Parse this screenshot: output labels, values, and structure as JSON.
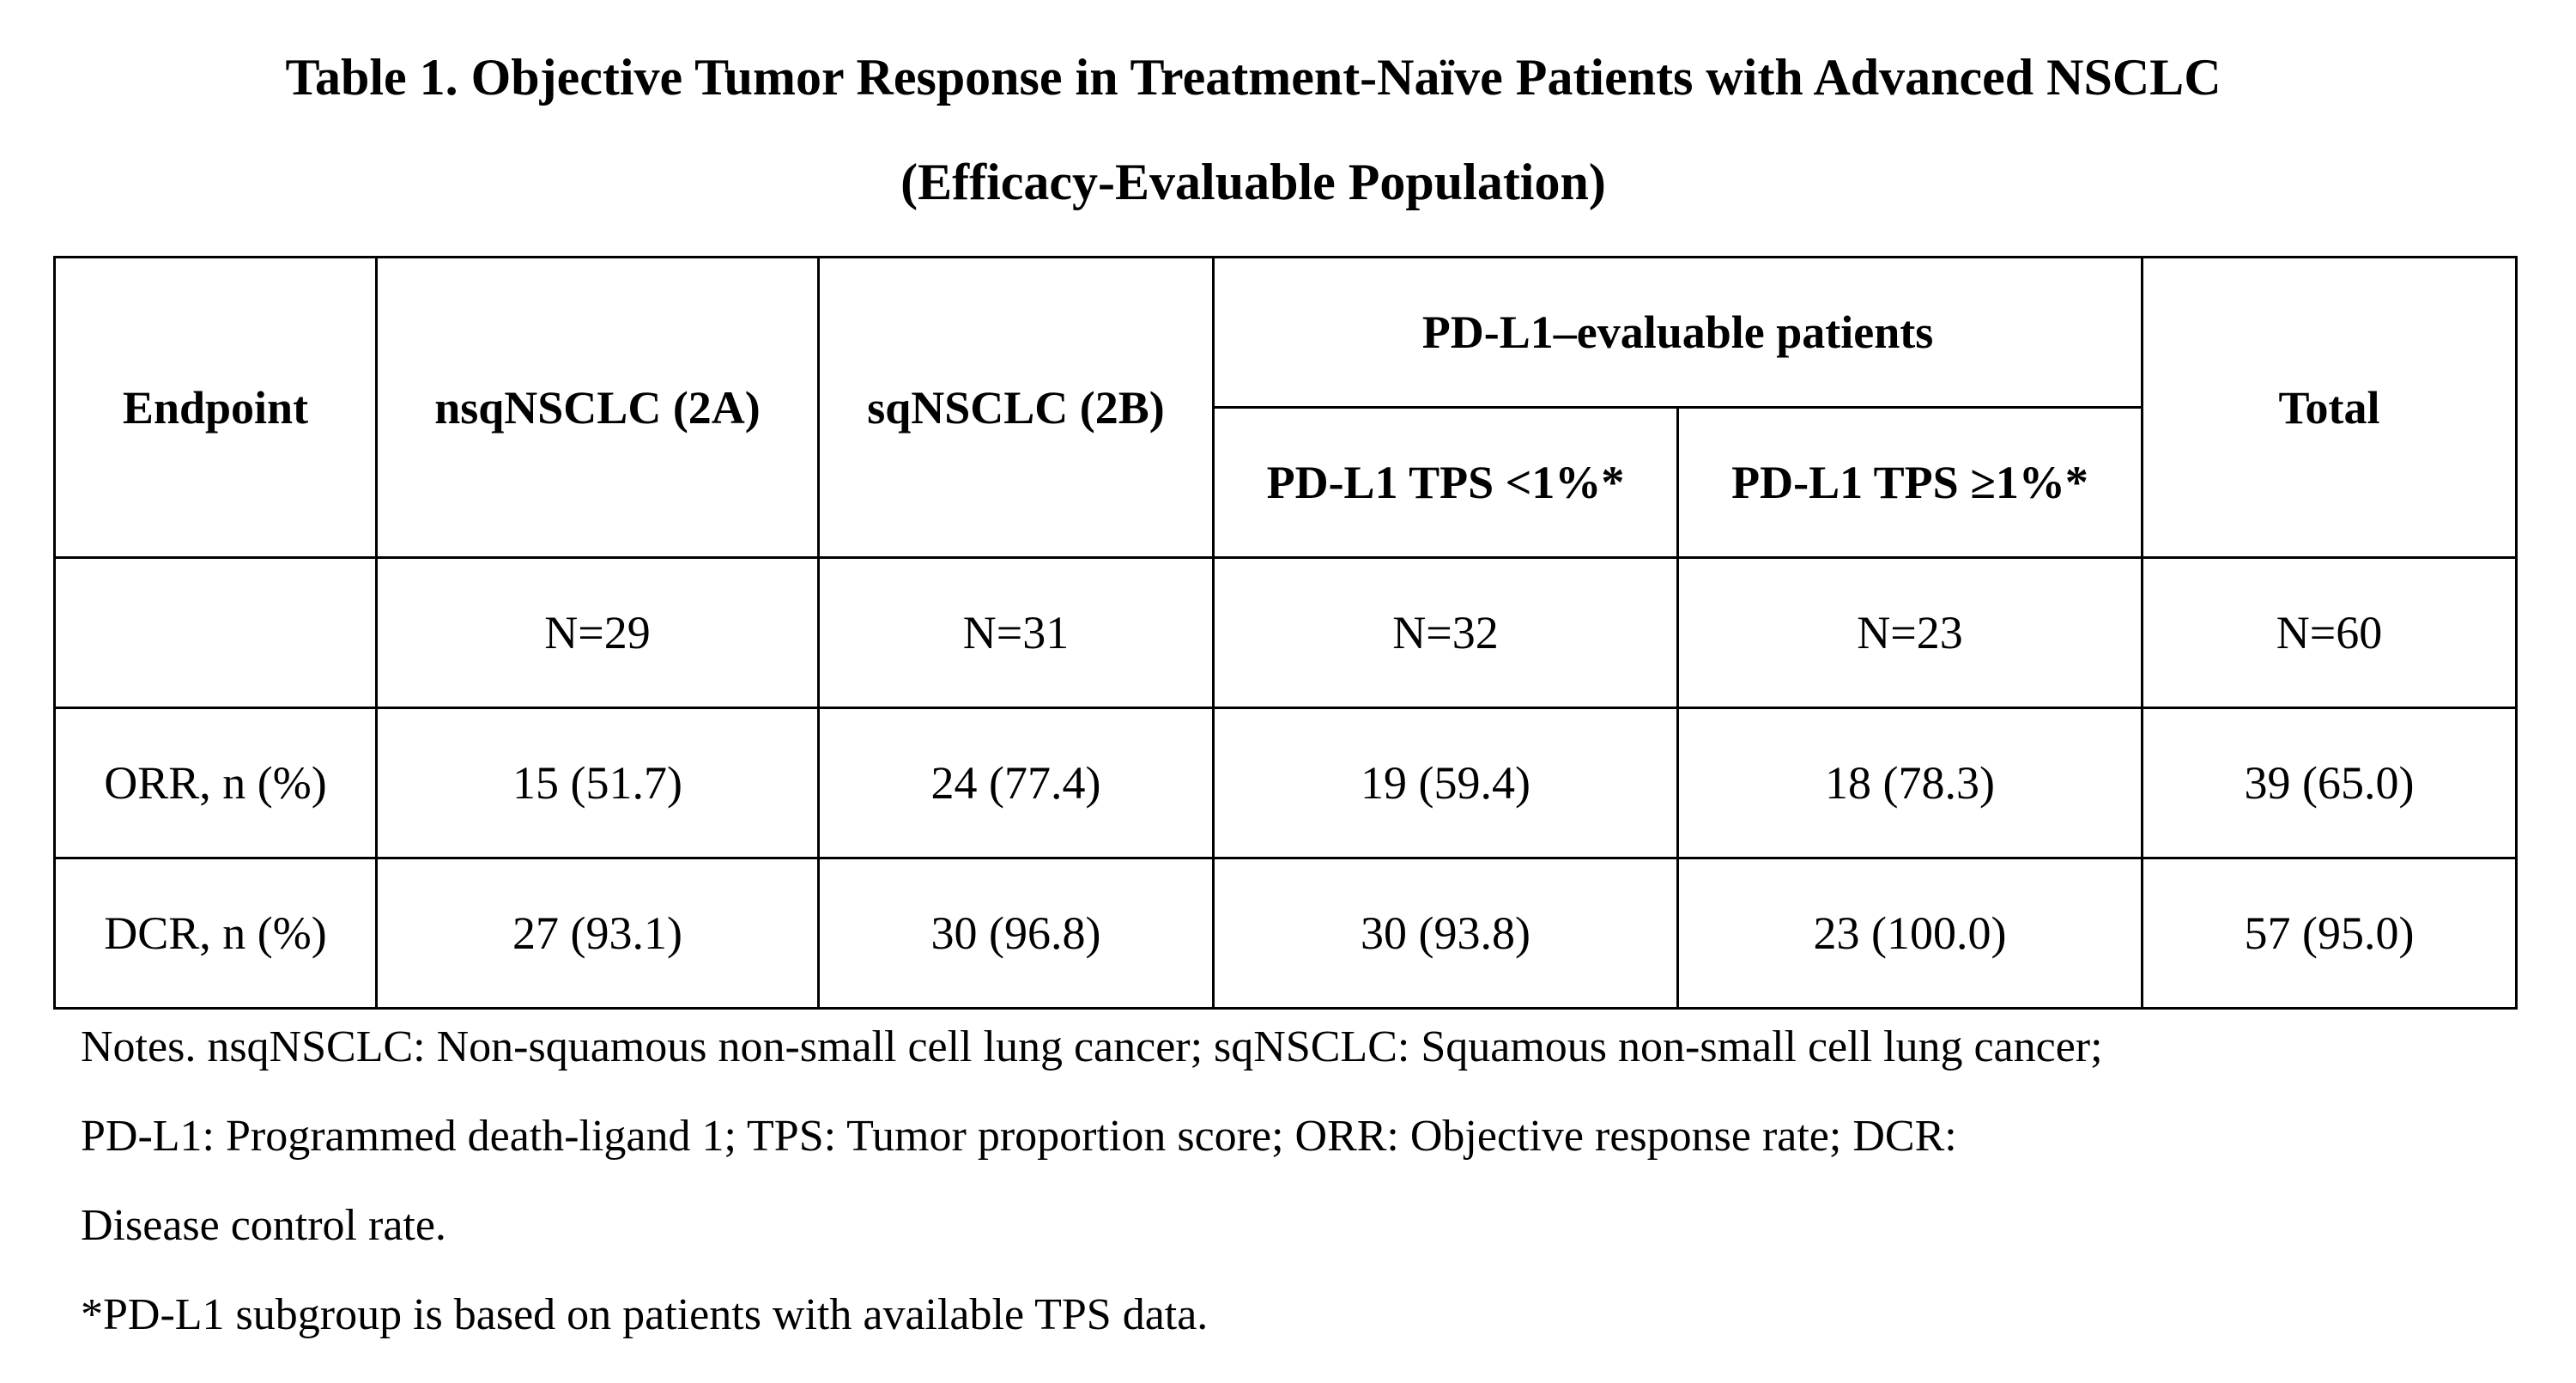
{
  "title": {
    "line1": "Table 1. Objective Tumor Response in Treatment-Naïve Patients with Advanced NSCLC",
    "line2": "(Efficacy-Evaluable Population)"
  },
  "table": {
    "header": {
      "endpoint": "Endpoint",
      "nsq": "nsqNSCLC (2A)",
      "sq": "sqNSCLC (2B)",
      "pdl1_group": "PD-L1–evaluable patients",
      "pdl1_low": "PD-L1 TPS <1%*",
      "pdl1_high": "PD-L1 TPS ≥1%*",
      "total": "Total"
    },
    "rows": [
      {
        "label": "",
        "nsq": "N=29",
        "sq": "N=31",
        "pdl1_low": "N=32",
        "pdl1_high": "N=23",
        "total": "N=60"
      },
      {
        "label": "ORR, n (%)",
        "nsq": "15 (51.7)",
        "sq": "24 (77.4)",
        "pdl1_low": "19 (59.4)",
        "pdl1_high": "18 (78.3)",
        "total": "39 (65.0)"
      },
      {
        "label": "DCR, n (%)",
        "nsq": "27 (93.1)",
        "sq": "30 (96.8)",
        "pdl1_low": "30 (93.8)",
        "pdl1_high": "23 (100.0)",
        "total": "57 (95.0)"
      }
    ]
  },
  "notes": {
    "line1": "Notes. nsqNSCLC: Non-squamous non-small cell lung cancer; sqNSCLC: Squamous non-small cell lung cancer;",
    "line2": "PD-L1: Programmed death-ligand 1; TPS: Tumor proportion score; ORR: Objective response rate; DCR:",
    "line3": "Disease control rate.",
    "footnote": "*PD-L1 subgroup is based on patients with available TPS data."
  }
}
